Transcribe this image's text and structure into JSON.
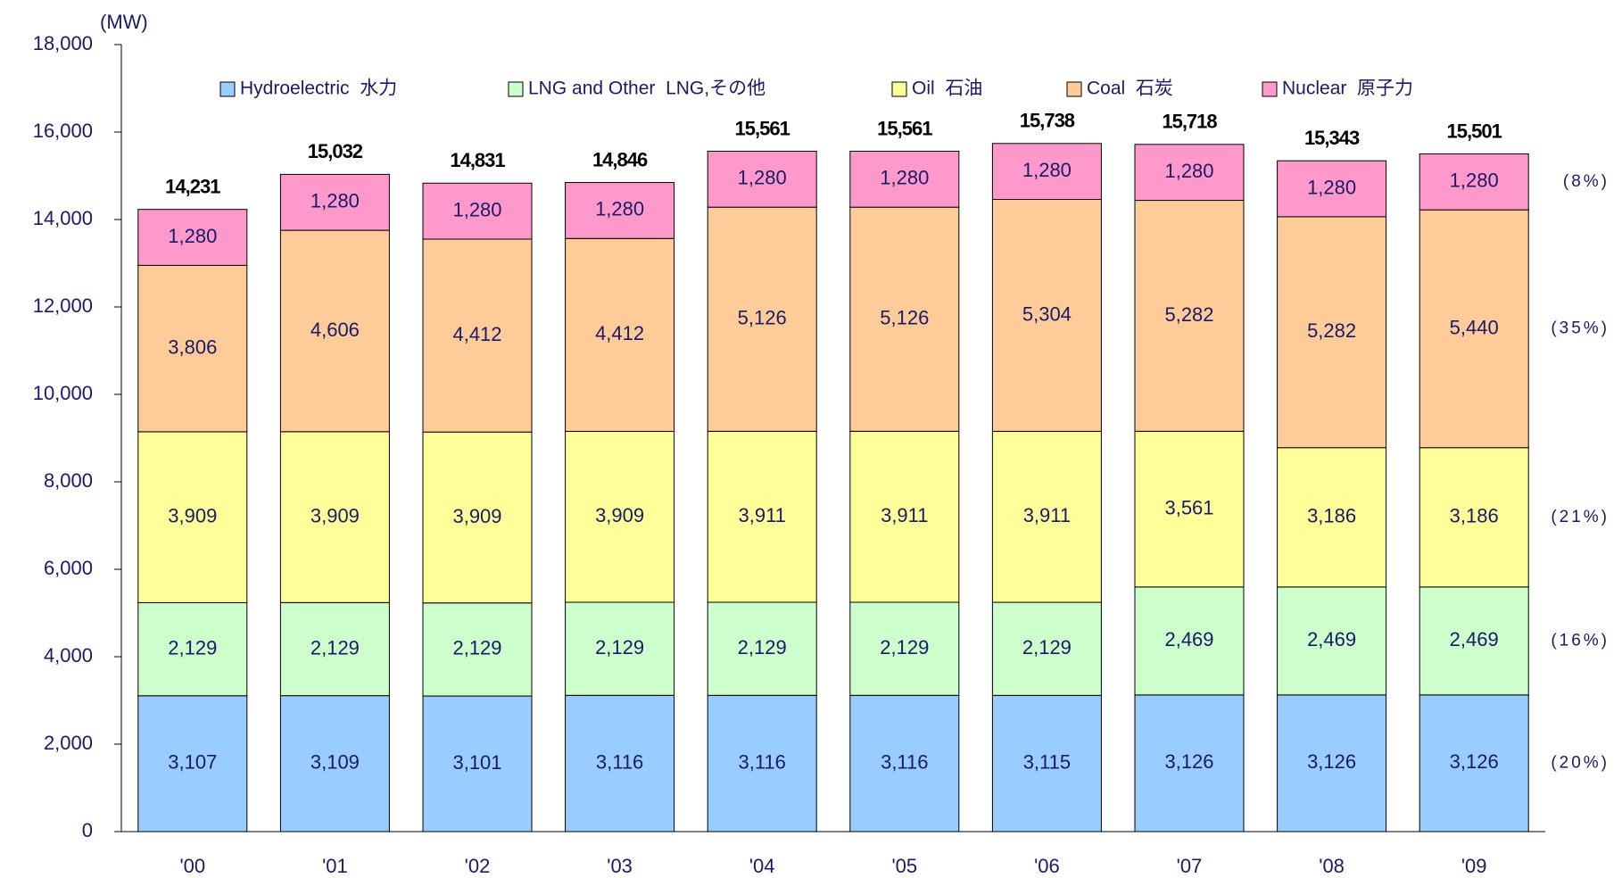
{
  "chart_data": {
    "type": "bar",
    "stacked": true,
    "y_label": "(MW)",
    "categories": [
      "'00",
      "'01",
      "'02",
      "'03",
      "'04",
      "'05",
      "'06",
      "'07",
      "'08",
      "'09"
    ],
    "series": [
      {
        "name": "Hydroelectric  水力",
        "color": "#99ccff",
        "values": [
          3107,
          3109,
          3101,
          3116,
          3116,
          3116,
          3115,
          3126,
          3126,
          3126
        ],
        "value_labels": [
          "3,107",
          "3,109",
          "3,101",
          "3,116",
          "3,116",
          "3,116",
          "3,115",
          "3,126",
          "3,126",
          "3,126"
        ]
      },
      {
        "name": "LNG and Other  LNG,その他",
        "color": "#ccffcc",
        "values": [
          2129,
          2129,
          2129,
          2129,
          2129,
          2129,
          2129,
          2469,
          2469,
          2469
        ],
        "value_labels": [
          "2,129",
          "2,129",
          "2,129",
          "2,129",
          "2,129",
          "2,129",
          "2,129",
          "2,469",
          "2,469",
          "2,469"
        ]
      },
      {
        "name": "Oil  石油",
        "color": "#ffff99",
        "values": [
          3909,
          3909,
          3909,
          3909,
          3911,
          3911,
          3911,
          3561,
          3186,
          3186
        ],
        "value_labels": [
          "3,909",
          "3,909",
          "3,909",
          "3,909",
          "3,911",
          "3,911",
          "3,911",
          "3,561",
          "3,186",
          "3,186"
        ]
      },
      {
        "name": "Coal  石炭",
        "color": "#ffcc99",
        "values": [
          3806,
          4606,
          4412,
          4412,
          5126,
          5126,
          5304,
          5282,
          5282,
          5440
        ],
        "value_labels": [
          "3,806",
          "4,606",
          "4,412",
          "4,412",
          "5,126",
          "5,126",
          "5,304",
          "5,282",
          "5,282",
          "5,440"
        ]
      },
      {
        "name": "Nuclear  原子力",
        "color": "#ff99cc",
        "values": [
          1280,
          1280,
          1280,
          1280,
          1280,
          1280,
          1280,
          1280,
          1280,
          1280
        ],
        "value_labels": [
          "1,280",
          "1,280",
          "1,280",
          "1,280",
          "1,280",
          "1,280",
          "1,280",
          "1,280",
          "1,280",
          "1,280"
        ]
      }
    ],
    "totals": [
      14231,
      15032,
      14831,
      14846,
      15561,
      15561,
      15738,
      15718,
      15343,
      15501
    ],
    "total_labels": [
      "14,231",
      "15,032",
      "14,831",
      "14,846",
      "15,561",
      "15,561",
      "15,738",
      "15,718",
      "15,343",
      "15,501"
    ],
    "annotations": [
      "(20%)",
      "(16%)",
      "(21%)",
      "(35%)",
      "(8%)"
    ],
    "ylim": [
      0,
      18000
    ],
    "yticks": [
      0,
      {
        "value": 2000,
        "label": "2,000"
      },
      {
        "value": 4000,
        "label": "4,000"
      },
      {
        "value": 6000,
        "label": "6,000"
      },
      {
        "value": 8000,
        "label": "8,000"
      },
      {
        "value": 10000,
        "label": "10,000"
      },
      {
        "value": 12000,
        "label": "12,000"
      },
      {
        "value": 14000,
        "label": "14,000"
      },
      {
        "value": 16000,
        "label": "16,000"
      },
      {
        "value": {
          "value": 18000
        },
        "label": "18,000"
      }
    ],
    "legend": "top"
  }
}
